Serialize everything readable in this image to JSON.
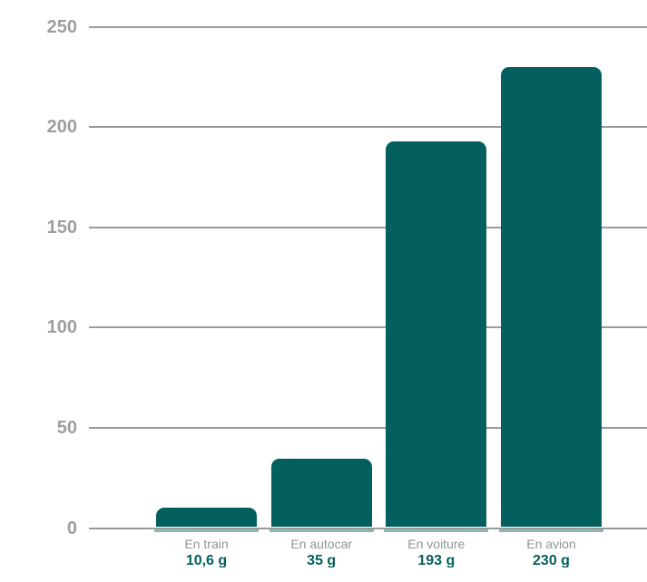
{
  "chart_data": {
    "type": "bar",
    "title": "",
    "xlabel": "",
    "ylabel": "",
    "categories": [
      "En train",
      "En autocar",
      "En voiture",
      "En avion"
    ],
    "values": [
      10.6,
      35,
      193,
      230
    ],
    "value_labels": [
      "10,6 g",
      "35 g",
      "193 g",
      "230 g"
    ],
    "unit": "g",
    "yticks": [
      0,
      50,
      100,
      150,
      200,
      250
    ],
    "ylim": [
      0,
      250
    ],
    "grid": true,
    "legend": false,
    "colors": {
      "bar": "#03605e",
      "bar_shadow": "rgba(3, 96, 94, 0.45)",
      "gridline": "#9a9a9a",
      "tick_label": "#9e9e9e",
      "category_label": "#909494",
      "value_label": "#03605e",
      "background": "#ffffff"
    }
  }
}
